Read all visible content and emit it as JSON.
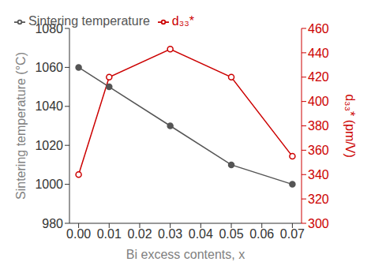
{
  "chart_data": {
    "type": "line",
    "xlabel": "Bi excess contents, x",
    "ylabel": "Sintering temperature (°C)",
    "y2label": "d₃₃* (pm/V)",
    "x": [
      0.0,
      0.01,
      0.03,
      0.05,
      0.07
    ],
    "xlim": [
      -0.003,
      0.073
    ],
    "xticks": [
      {
        "value": 0,
        "label": "0.00"
      },
      0.01,
      0.02,
      0.03,
      0.04,
      0.05,
      0.06,
      0.07
    ],
    "ylim": [
      980,
      1080
    ],
    "yticks": [
      980,
      1000,
      1020,
      1040,
      1060,
      1080
    ],
    "y2lim": [
      300,
      460
    ],
    "y2ticks": [
      300,
      320,
      340,
      360,
      380,
      400,
      420,
      440,
      460
    ],
    "legend": "upper left",
    "series": [
      {
        "name": "Sintering temperature",
        "color": "#555555",
        "marker": "filled",
        "values": [
          1060,
          1050,
          1030,
          1010,
          1000
        ]
      },
      {
        "name": "d₃₃*",
        "color": "#cc0000",
        "marker": "open",
        "axis": "y2",
        "values": [
          340,
          420,
          443,
          420,
          355
        ]
      }
    ]
  }
}
